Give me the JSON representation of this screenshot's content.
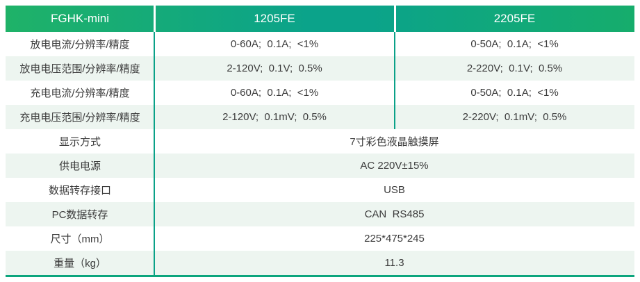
{
  "table": {
    "header": {
      "model": "FGHK-mini",
      "col_1205": "1205FE",
      "col_2205": "2205FE"
    },
    "rows": [
      {
        "label": "放电电流/分辨率/精度",
        "values": [
          "0-60A;  0.1A;  <1%",
          "0-50A;  0.1A;  <1%"
        ]
      },
      {
        "label": "放电电压范围/分辨率/精度",
        "values": [
          "2-120V;  0.1V;  0.5%",
          "2-220V;  0.1V;  0.5%"
        ]
      },
      {
        "label": "充电电流/分辨率/精度",
        "values": [
          "0-60A;  0.1A;  <1%",
          "0-50A;  0.1A;  <1%"
        ]
      },
      {
        "label": "充电电压范围/分辨率/精度",
        "values": [
          "2-120V;  0.1mV;  0.5%",
          "2-220V;  0.1mV;  0.5%"
        ]
      },
      {
        "label": "显示方式",
        "value": "7寸彩色液晶触摸屏"
      },
      {
        "label": "供电电源",
        "value": "AC 220V±15%"
      },
      {
        "label": "数据转存接口",
        "value": "USB"
      },
      {
        "label": "PC数据转存",
        "value": "CAN  RS485"
      },
      {
        "label": "尺寸（mm）",
        "value": "225*475*245"
      },
      {
        "label": "重量（kg）",
        "value": "11.3"
      }
    ],
    "colors": {
      "header_gradient_left": "#1fb268",
      "header_gradient_mid": "#0ba38a",
      "header_gradient_right": "#16ad6c",
      "row_alt_bg": "#edf5f0",
      "column_divider": "#0aa188",
      "bottom_border": "#0ca57d",
      "header_text": "#ffffff",
      "body_text": "#3c3c3c"
    }
  }
}
